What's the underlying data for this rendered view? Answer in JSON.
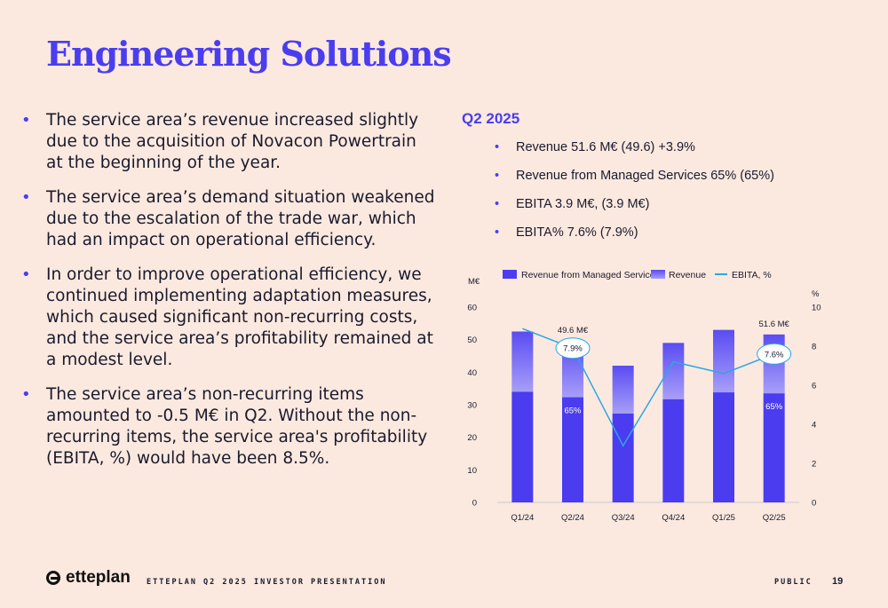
{
  "title": "Engineering Solutions",
  "bullets": [
    "The service area’s revenue increased slightly due to the acquisition of Novacon Powertrain at the beginning of the year.",
    "The service area’s demand situation weakened due to the escalation of the trade war, which had an impact on operational efficiency.",
    "In order to improve operational efficiency, we continued implementing adaptation measures, which caused significant non-recurring costs, and the service area’s profitability remained at a modest level.",
    "The service area’s non-recurring items amounted to -0.5 M€ in Q2. Without the non-recurring items, the service area's profitability (EBITA, %) would have been 8.5%."
  ],
  "quarter": {
    "title": "Q2 2025",
    "kpis": [
      "Revenue 51.6 M€ (49.6) +3.9%",
      "Revenue from Managed Services 65% (65%)",
      "EBITA 3.9 M€, (3.9 M€)",
      "EBITA% 7.6% (7.9%)"
    ]
  },
  "chart_data": {
    "type": "bar",
    "categories": [
      "Q1/24",
      "Q2/24",
      "Q3/24",
      "Q4/24",
      "Q1/25",
      "Q2/25"
    ],
    "series": [
      {
        "name": "Revenue from Managed Services",
        "type": "bar",
        "axis": "left",
        "values": [
          34.0,
          32.3,
          27.3,
          31.7,
          33.8,
          33.5
        ]
      },
      {
        "name": "Revenue",
        "type": "bar",
        "axis": "left",
        "values": [
          52.5,
          49.6,
          42.0,
          49.0,
          53.0,
          51.6
        ]
      },
      {
        "name": "EBITA, %",
        "type": "line",
        "axis": "right",
        "values": [
          8.9,
          7.9,
          2.9,
          7.2,
          6.6,
          7.6
        ]
      }
    ],
    "ylabel": "M€",
    "y2label": "%",
    "ylim": [
      0,
      60
    ],
    "y2lim": [
      0,
      10
    ],
    "yticks": [
      0,
      10,
      20,
      30,
      40,
      50,
      60
    ],
    "y2ticks": [
      0,
      2,
      4,
      6,
      8,
      10
    ],
    "annotations": [
      {
        "category": "Q2/24",
        "revenue_label": "49.6 M€",
        "ebita_label": "7.9%",
        "ms_label": "65%"
      },
      {
        "category": "Q2/25",
        "revenue_label": "51.6 M€",
        "ebita_label": "7.6%",
        "ms_label": "65%"
      }
    ],
    "legend": "top",
    "grid": false,
    "colors": {
      "ms": "#4b3cf0",
      "revenue": "#8a7ff6",
      "ebita": "#2aa7e6"
    }
  },
  "footer": {
    "logo": "etteplan",
    "text": "ETTEPLAN Q2 2025 INVESTOR PRESENTATION",
    "classification": "PUBLIC",
    "page": "19"
  }
}
